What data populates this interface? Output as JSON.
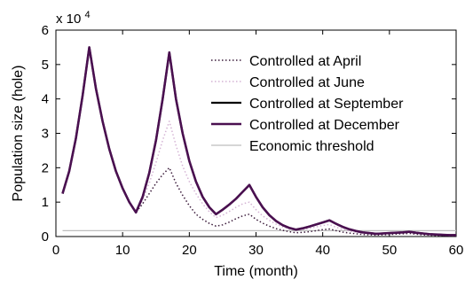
{
  "chart_data": {
    "type": "line",
    "title": "",
    "xlabel": "Time (month)",
    "ylabel": "Population size (hole)",
    "y_multiplier_base": "x 10",
    "y_multiplier_exp": "4",
    "xlim": [
      0,
      60
    ],
    "ylim": [
      0,
      6
    ],
    "xticks": [
      0,
      10,
      20,
      30,
      40,
      50,
      60
    ],
    "yticks": [
      0,
      1,
      2,
      3,
      4,
      5,
      6
    ],
    "grid": false,
    "legend_position": "top-right",
    "series": [
      {
        "name": "Controlled at April",
        "color": "#3a1a3a",
        "style": "dotted",
        "x": [
          1,
          2,
          3,
          4,
          5,
          6,
          7,
          8,
          9,
          10,
          11,
          12,
          13,
          14,
          15,
          16,
          17,
          18,
          19,
          20,
          21,
          22,
          23,
          24,
          25,
          26,
          27,
          28,
          29,
          30,
          31,
          32,
          33,
          34,
          35,
          36,
          37,
          38,
          39,
          40,
          41,
          42,
          43,
          44,
          45,
          46,
          47,
          48,
          49,
          50,
          51,
          52,
          53,
          54,
          55,
          56,
          57,
          58,
          59,
          60
        ],
        "y": [
          1.25,
          1.9,
          2.85,
          4.1,
          5.5,
          4.3,
          3.35,
          2.55,
          1.9,
          1.4,
          1.0,
          0.7,
          0.95,
          1.25,
          1.55,
          1.8,
          2.0,
          1.55,
          1.2,
          0.9,
          0.65,
          0.5,
          0.38,
          0.3,
          0.34,
          0.42,
          0.52,
          0.6,
          0.65,
          0.5,
          0.39,
          0.3,
          0.23,
          0.18,
          0.14,
          0.11,
          0.12,
          0.14,
          0.17,
          0.2,
          0.22,
          0.17,
          0.13,
          0.1,
          0.08,
          0.06,
          0.05,
          0.04,
          0.05,
          0.06,
          0.07,
          0.08,
          0.09,
          0.07,
          0.05,
          0.04,
          0.03,
          0.03,
          0.02,
          0.02
        ]
      },
      {
        "name": "Controlled at June",
        "color": "#d4b3d4",
        "style": "dotted",
        "x": [
          1,
          2,
          3,
          4,
          5,
          6,
          7,
          8,
          9,
          10,
          11,
          12,
          13,
          14,
          15,
          16,
          17,
          18,
          19,
          20,
          21,
          22,
          23,
          24,
          25,
          26,
          27,
          28,
          29,
          30,
          31,
          32,
          33,
          34,
          35,
          36,
          37,
          38,
          39,
          40,
          41,
          42,
          43,
          44,
          45,
          46,
          47,
          48,
          49,
          50,
          51,
          52,
          53,
          54,
          55,
          56,
          57,
          58,
          59,
          60
        ],
        "y": [
          1.25,
          1.9,
          2.85,
          4.1,
          5.5,
          4.3,
          3.35,
          2.55,
          1.9,
          1.4,
          1.0,
          0.7,
          1.05,
          1.55,
          2.15,
          2.8,
          3.35,
          2.65,
          2.05,
          1.6,
          1.25,
          0.95,
          0.72,
          0.55,
          0.62,
          0.73,
          0.85,
          0.95,
          1.0,
          0.78,
          0.6,
          0.47,
          0.36,
          0.28,
          0.22,
          0.18,
          0.2,
          0.24,
          0.28,
          0.32,
          0.35,
          0.27,
          0.21,
          0.16,
          0.12,
          0.1,
          0.08,
          0.07,
          0.08,
          0.09,
          0.1,
          0.11,
          0.12,
          0.1,
          0.08,
          0.06,
          0.05,
          0.04,
          0.04,
          0.03
        ]
      },
      {
        "name": "Controlled at September",
        "color": "#000000",
        "style": "solid",
        "x": [
          1,
          2,
          3,
          4,
          5,
          6,
          7,
          8,
          9,
          10,
          11,
          12,
          13,
          14,
          15,
          16,
          17,
          18,
          19,
          20,
          21,
          22,
          23,
          24,
          25,
          26,
          27,
          28,
          29,
          30,
          31,
          32,
          33,
          34,
          35,
          36,
          37,
          38,
          39,
          40,
          41,
          42,
          43,
          44,
          45,
          46,
          47,
          48,
          49,
          50,
          51,
          52,
          53,
          54,
          55,
          56,
          57,
          58,
          59,
          60
        ],
        "y": [
          1.25,
          1.9,
          2.85,
          4.1,
          5.5,
          4.3,
          3.35,
          2.55,
          1.9,
          1.4,
          1.0,
          0.7,
          1.15,
          1.85,
          2.8,
          4.0,
          5.35,
          4.0,
          3.0,
          2.2,
          1.6,
          1.15,
          0.85,
          0.65,
          0.78,
          0.93,
          1.1,
          1.3,
          1.5,
          1.15,
          0.85,
          0.62,
          0.45,
          0.33,
          0.25,
          0.2,
          0.24,
          0.29,
          0.35,
          0.41,
          0.47,
          0.37,
          0.28,
          0.21,
          0.16,
          0.12,
          0.1,
          0.08,
          0.09,
          0.1,
          0.11,
          0.12,
          0.14,
          0.11,
          0.09,
          0.07,
          0.06,
          0.05,
          0.04,
          0.04
        ]
      },
      {
        "name": "Controlled at December",
        "color": "#4a1050",
        "style": "solid",
        "x": [
          1,
          2,
          3,
          4,
          5,
          6,
          7,
          8,
          9,
          10,
          11,
          12,
          13,
          14,
          15,
          16,
          17,
          18,
          19,
          20,
          21,
          22,
          23,
          24,
          25,
          26,
          27,
          28,
          29,
          30,
          31,
          32,
          33,
          34,
          35,
          36,
          37,
          38,
          39,
          40,
          41,
          42,
          43,
          44,
          45,
          46,
          47,
          48,
          49,
          50,
          51,
          52,
          53,
          54,
          55,
          56,
          57,
          58,
          59,
          60
        ],
        "y": [
          1.25,
          1.9,
          2.85,
          4.1,
          5.5,
          4.3,
          3.35,
          2.55,
          1.9,
          1.4,
          1.0,
          0.7,
          1.15,
          1.85,
          2.8,
          4.0,
          5.35,
          4.0,
          3.0,
          2.2,
          1.6,
          1.15,
          0.85,
          0.65,
          0.78,
          0.93,
          1.1,
          1.3,
          1.5,
          1.15,
          0.85,
          0.62,
          0.45,
          0.33,
          0.25,
          0.2,
          0.24,
          0.29,
          0.35,
          0.41,
          0.47,
          0.37,
          0.28,
          0.21,
          0.16,
          0.12,
          0.1,
          0.08,
          0.09,
          0.1,
          0.11,
          0.12,
          0.14,
          0.11,
          0.09,
          0.07,
          0.06,
          0.05,
          0.04,
          0.04
        ]
      },
      {
        "name": "Economic threshold",
        "color": "#bdbdbd",
        "style": "solid",
        "x": [
          1,
          60
        ],
        "y": [
          0.17,
          0.17
        ]
      }
    ]
  }
}
